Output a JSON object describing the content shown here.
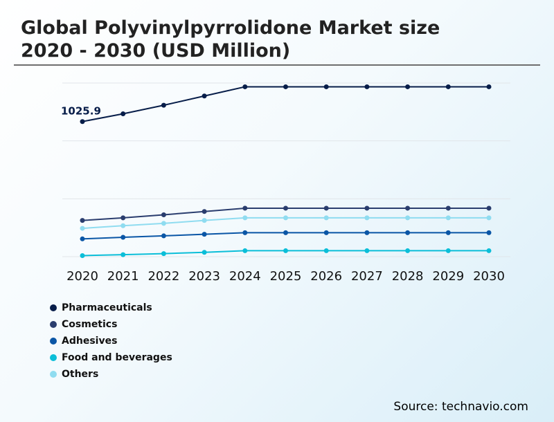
{
  "header": {
    "title_line1": "Global Polyvinylpyrrolidone Market size",
    "title_line2": "2020 - 2030 (USD Million)"
  },
  "footer": {
    "source_label": "Source:",
    "source_value": "technavio.com"
  },
  "chart_data": {
    "type": "line",
    "categories": [
      "2020",
      "2021",
      "2022",
      "2023",
      "2024",
      "2025",
      "2026",
      "2027",
      "2028",
      "2029",
      "2030"
    ],
    "ylim": [
      0,
      1450
    ],
    "grid": true,
    "legend_position": "bottom-left",
    "annotations": [
      {
        "series": "Pharmaceuticals",
        "x": "2020",
        "text": "1025.9"
      }
    ],
    "series": [
      {
        "name": "Pharmaceuticals",
        "color": "#071d49",
        "values": [
          1025.9,
          1085,
          1150,
          1220,
          1290,
          1290,
          1290,
          1290,
          1290,
          1290,
          1290
        ]
      },
      {
        "name": "Cosmetics",
        "color": "#2a3d6e",
        "values": [
          275,
          295,
          318,
          343,
          368,
          368,
          368,
          368,
          368,
          368,
          368
        ]
      },
      {
        "name": "Adhesives",
        "color": "#0a56a6",
        "values": [
          135,
          147,
          158,
          170,
          182,
          182,
          182,
          182,
          182,
          182,
          182
        ]
      },
      {
        "name": "Food and beverages",
        "color": "#0bbed8",
        "values": [
          8,
          15,
          23,
          33,
          45,
          45,
          45,
          45,
          45,
          45,
          45
        ]
      },
      {
        "name": "Others",
        "color": "#8fdcf0",
        "values": [
          215,
          235,
          253,
          275,
          295,
          295,
          295,
          295,
          295,
          295,
          295
        ]
      }
    ]
  }
}
